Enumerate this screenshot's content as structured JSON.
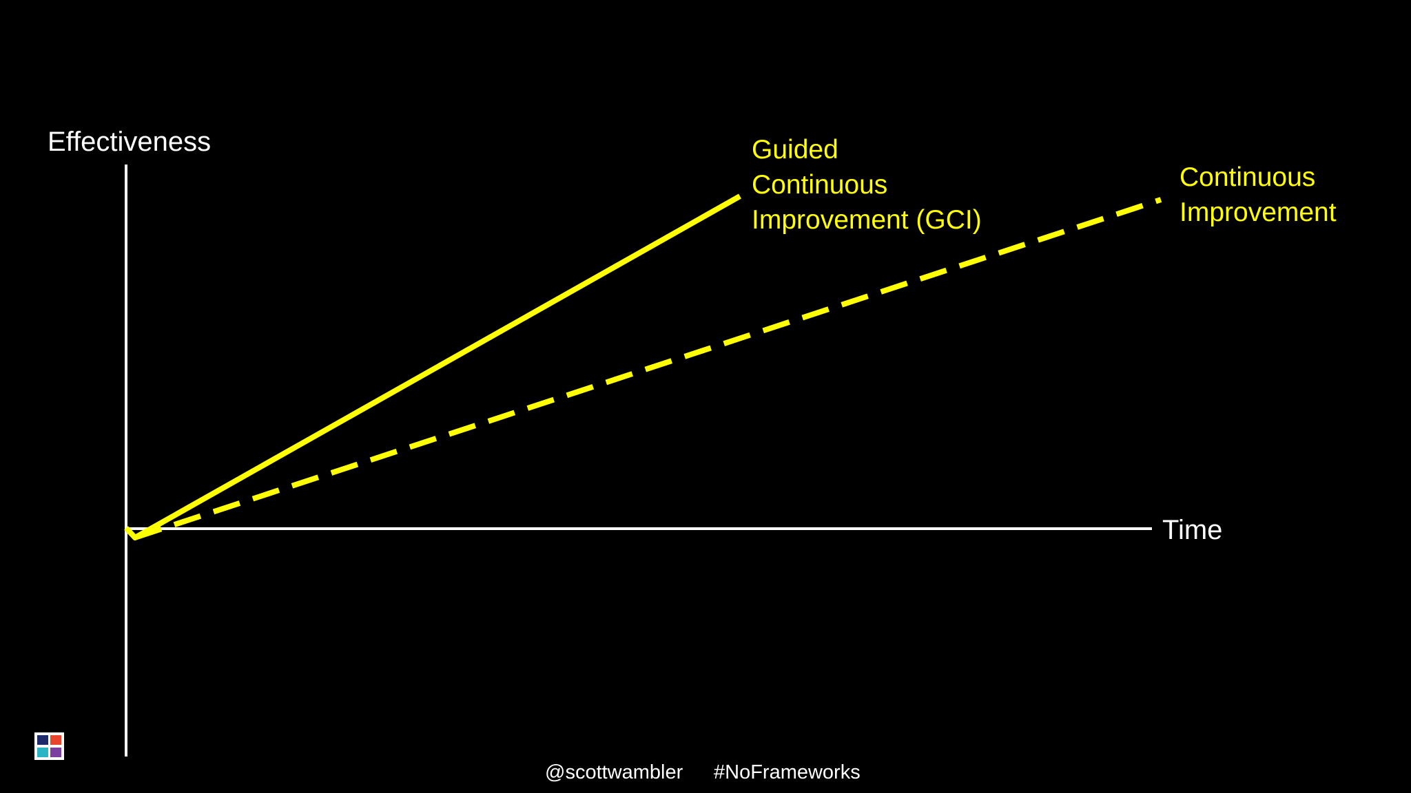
{
  "axes": {
    "y_label": "Effectiveness",
    "x_label": "Time"
  },
  "lines": [
    {
      "label_lines": [
        "Guided",
        "Continuous",
        "Improvement (GCI)"
      ]
    },
    {
      "label_lines": [
        "Continuous",
        "Improvement"
      ]
    }
  ],
  "footer": {
    "handle": "@scottwambler",
    "hashtag": "#NoFrameworks"
  }
}
